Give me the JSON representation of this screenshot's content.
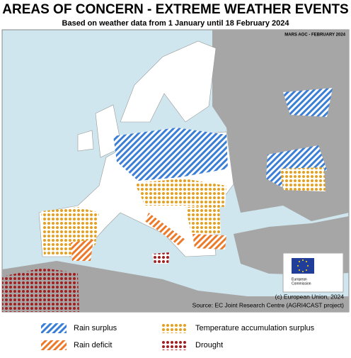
{
  "header": {
    "title": "AREAS OF CONCERN - EXTREME WEATHER EVENTS",
    "subtitle": "Based on weather data from 1 January until 18 February 2024"
  },
  "map": {
    "tag": "MARS AOC - FEBRUARY 2024",
    "logo_text": [
      "European",
      "Commission"
    ],
    "copyright": "(c) European Union, 2024",
    "source": "Source: EC Joint Research Centre (AGRI4CAST project)"
  },
  "legend": [
    {
      "label": "Rain surplus"
    },
    {
      "label": "Rain deficit"
    },
    {
      "label": "Temperature accumulation surplus"
    },
    {
      "label": "Drought"
    }
  ]
}
